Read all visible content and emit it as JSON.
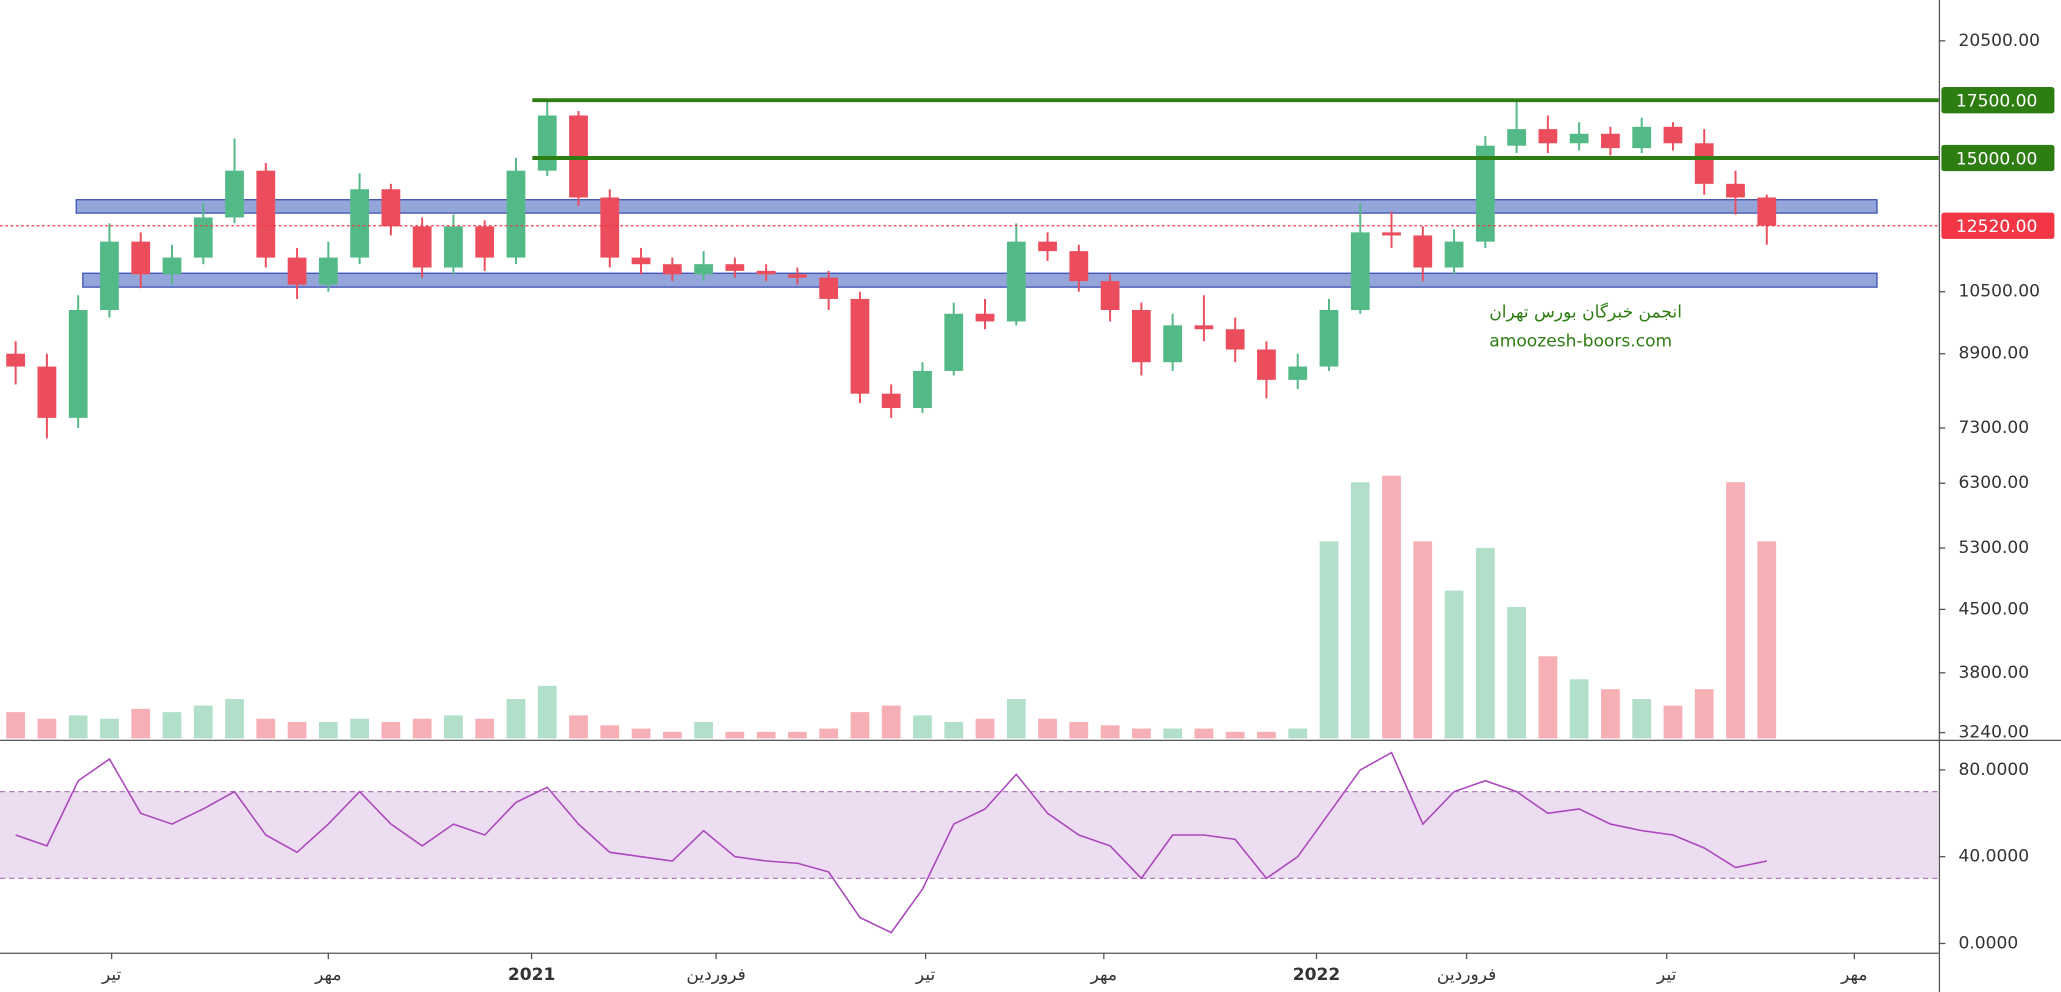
{
  "chart_data": [
    {
      "type": "candlestick",
      "log_scale": true,
      "ylim": [
        3190,
        22860
      ],
      "xlim": [
        -0.5,
        61.5
      ],
      "yticks": [
        {
          "value": 20500,
          "label": "20500.00"
        },
        {
          "value": 10500,
          "label": "10500.00"
        },
        {
          "value": 8900,
          "label": "8900.00"
        },
        {
          "value": 7300,
          "label": "7300.00"
        },
        {
          "value": 6300,
          "label": "6300.00"
        },
        {
          "value": 5300,
          "label": "5300.00"
        },
        {
          "value": 4500,
          "label": "4500.00"
        },
        {
          "value": 3800,
          "label": "3800.00"
        },
        {
          "value": 3240,
          "label": "3240.00"
        }
      ],
      "xticks": [
        {
          "value": 3.07,
          "label": "تیر"
        },
        {
          "value": 10.0,
          "label": "مهر"
        },
        {
          "value": 16.5,
          "label": "2021"
        },
        {
          "value": 22.4,
          "label": "فروردین"
        },
        {
          "value": 29.1,
          "label": "تیر"
        },
        {
          "value": 34.8,
          "label": "مهر"
        },
        {
          "value": 41.6,
          "label": "2022"
        },
        {
          "value": 46.4,
          "label": "فروردین"
        },
        {
          "value": 52.8,
          "label": "تیر"
        },
        {
          "value": 58.8,
          "label": "مهر"
        }
      ],
      "open": [
        8900,
        8600,
        7500,
        10000,
        12000,
        11000,
        11500,
        12800,
        14500,
        11500,
        10700,
        11500,
        13800,
        12500,
        11200,
        12500,
        11500,
        14500,
        16800,
        13500,
        11500,
        11300,
        11000,
        11300,
        11100,
        11000,
        10900,
        10300,
        8000,
        7700,
        8500,
        9900,
        9700,
        12000,
        11700,
        10800,
        10000,
        8700,
        9600,
        9500,
        9000,
        8300,
        8600,
        10000,
        12300,
        12200,
        11200,
        12000,
        15500,
        16200,
        15600,
        16000,
        15400,
        16300,
        15600,
        14000,
        13500
      ],
      "high": [
        9200,
        8900,
        10400,
        12600,
        12300,
        11900,
        13300,
        15800,
        14800,
        11800,
        12000,
        14400,
        14000,
        12800,
        12900,
        12700,
        15000,
        17500,
        17000,
        13800,
        11800,
        11500,
        11700,
        11500,
        11300,
        11200,
        11100,
        10500,
        8200,
        8700,
        10200,
        10300,
        12600,
        12300,
        11900,
        11000,
        10200,
        9900,
        10400,
        9800,
        9200,
        8900,
        10300,
        13300,
        13000,
        12500,
        12400,
        15900,
        17500,
        16800,
        16500,
        16300,
        16700,
        16500,
        16200,
        14500,
        13600
      ],
      "low": [
        8200,
        7100,
        7300,
        9800,
        10600,
        10700,
        11300,
        12600,
        11200,
        10300,
        10500,
        11300,
        12200,
        10900,
        11000,
        11100,
        11300,
        14300,
        13200,
        11200,
        11000,
        10800,
        10800,
        10900,
        10800,
        10700,
        10000,
        7800,
        7500,
        7600,
        8400,
        9500,
        9600,
        11400,
        10500,
        9700,
        8400,
        8500,
        9200,
        8700,
        7900,
        8100,
        8500,
        9900,
        11800,
        10800,
        11000,
        11800,
        15200,
        15200,
        15300,
        15100,
        15200,
        15300,
        13600,
        12900,
        11900
      ],
      "close": [
        8600,
        7500,
        10000,
        12000,
        11000,
        11500,
        12800,
        14500,
        11500,
        10700,
        11500,
        13800,
        12500,
        11200,
        12500,
        11500,
        14500,
        16800,
        13500,
        11500,
        11300,
        11000,
        11300,
        11100,
        11000,
        10900,
        10300,
        8000,
        7700,
        8500,
        9900,
        9700,
        12000,
        11700,
        10800,
        10000,
        8700,
        9600,
        9500,
        9000,
        8300,
        8600,
        10000,
        12300,
        12200,
        11200,
        12000,
        15500,
        16200,
        15600,
        16000,
        15400,
        16300,
        15600,
        14000,
        13500,
        12520
      ],
      "up_color": "#53b987",
      "down_color": "#eb4d5c",
      "volume": [
        8,
        6,
        7,
        6,
        9,
        8,
        10,
        12,
        6,
        5,
        5,
        6,
        5,
        6,
        7,
        6,
        12,
        16,
        7,
        4,
        3,
        2,
        5,
        2,
        2,
        2,
        3,
        8,
        10,
        7,
        5,
        6,
        12,
        6,
        5,
        4,
        3,
        3,
        3,
        2,
        2,
        3,
        60,
        78,
        80,
        60,
        45,
        58,
        40,
        25,
        18,
        15,
        12,
        10,
        15,
        78,
        60
      ],
      "volume_lim": [
        0,
        100
      ],
      "levels": [
        {
          "value": 17500,
          "label": "17500.00",
          "color": "#2e7d12"
        },
        {
          "value": 15000,
          "label": "15000.00",
          "color": "#2e7d12"
        },
        {
          "value": 12520,
          "label": "12520.00",
          "color": "#f23645",
          "style": "dotted"
        }
      ],
      "zones": [
        {
          "from": 12950,
          "to": 13420,
          "color": "#8196d2"
        },
        {
          "from": 10630,
          "to": 11030,
          "color": "#8196d2"
        }
      ],
      "annotations": [
        "انجمن خبرگان بورس تهران",
        "amoozesh-boors.com"
      ]
    },
    {
      "type": "line",
      "values": [
        50,
        45,
        75,
        85,
        60,
        55,
        62,
        70,
        50,
        42,
        55,
        70,
        55,
        45,
        55,
        50,
        65,
        72,
        55,
        42,
        40,
        38,
        52,
        40,
        38,
        37,
        33,
        12,
        5,
        25,
        55,
        62,
        78,
        60,
        50,
        45,
        30,
        50,
        50,
        48,
        30,
        40,
        60,
        80,
        88,
        55,
        70,
        75,
        70,
        60,
        62,
        55,
        52,
        50,
        44,
        35,
        38
      ],
      "color": "#ab47bc",
      "ylim": [
        -4.2,
        92.7
      ],
      "xlim": [
        -0.5,
        61.5
      ],
      "yticks": [
        {
          "value": 80,
          "label": "80.0000"
        },
        {
          "value": 40,
          "label": "40.0000"
        },
        {
          "value": 0,
          "label": "0.0000"
        }
      ],
      "band": [
        30,
        70
      ]
    }
  ]
}
